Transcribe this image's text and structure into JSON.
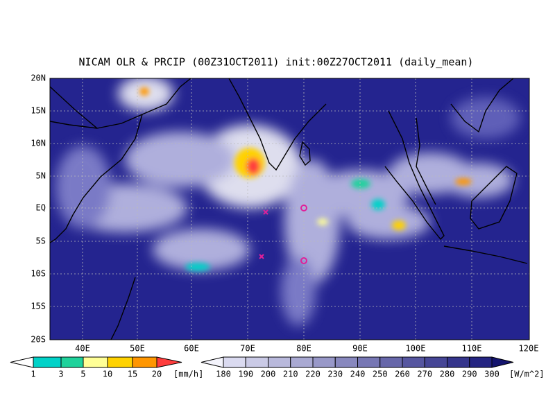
{
  "title": "NICAM OLR & PRCIP (00Z31OCT2011) init:00Z27OCT2011 (daily_mean)",
  "map": {
    "lat_labels": [
      "20N",
      "15N",
      "10N",
      "5N",
      "EQ",
      "5S",
      "10S",
      "15S",
      "20S"
    ],
    "lon_labels": [
      "40E",
      "50E",
      "60E",
      "70E",
      "80E",
      "90E",
      "100E",
      "110E",
      "120E"
    ]
  },
  "colorbars": [
    {
      "labels": [
        "1",
        "3",
        "5",
        "10",
        "15",
        "20"
      ],
      "unit": "[mm/h]"
    },
    {
      "labels": [
        "180",
        "190",
        "200",
        "210",
        "220",
        "230",
        "240",
        "250",
        "260",
        "270",
        "280",
        "290",
        "300"
      ],
      "unit": "[W/m^2]"
    }
  ]
}
